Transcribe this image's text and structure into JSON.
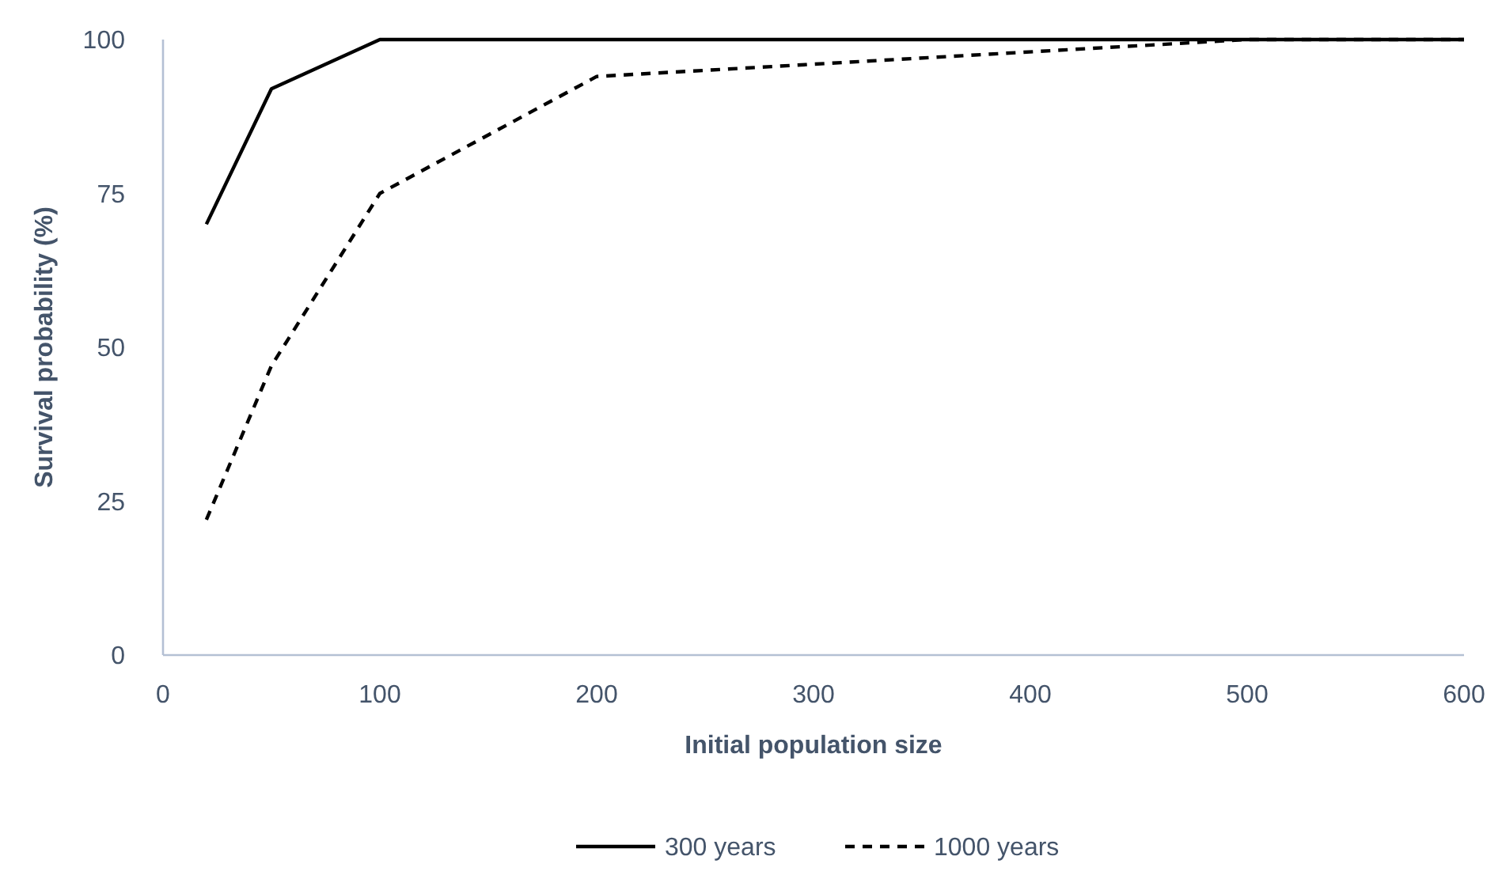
{
  "chart_data": {
    "type": "line",
    "xlabel": "Initial population size",
    "ylabel": "Survival probability (%)",
    "xlim": [
      0,
      600
    ],
    "xticks": [
      0,
      100,
      200,
      300,
      400,
      500,
      600
    ],
    "ylim": [
      0,
      100
    ],
    "yticks": [
      0,
      25,
      50,
      75,
      100
    ],
    "legend": "bottom",
    "marker": "none",
    "grid": false,
    "series": [
      {
        "name": "300 years",
        "color": "#000000",
        "line_style": "solid",
        "x": [
          20,
          50,
          100,
          200,
          500,
          600
        ],
        "values": [
          70,
          92,
          100,
          100,
          100,
          100
        ]
      },
      {
        "name": "1000 years",
        "color": "#000000",
        "line_style": "dashed",
        "x": [
          20,
          50,
          100,
          200,
          500,
          600
        ],
        "values": [
          22,
          47,
          75,
          94,
          100,
          100
        ]
      }
    ]
  }
}
